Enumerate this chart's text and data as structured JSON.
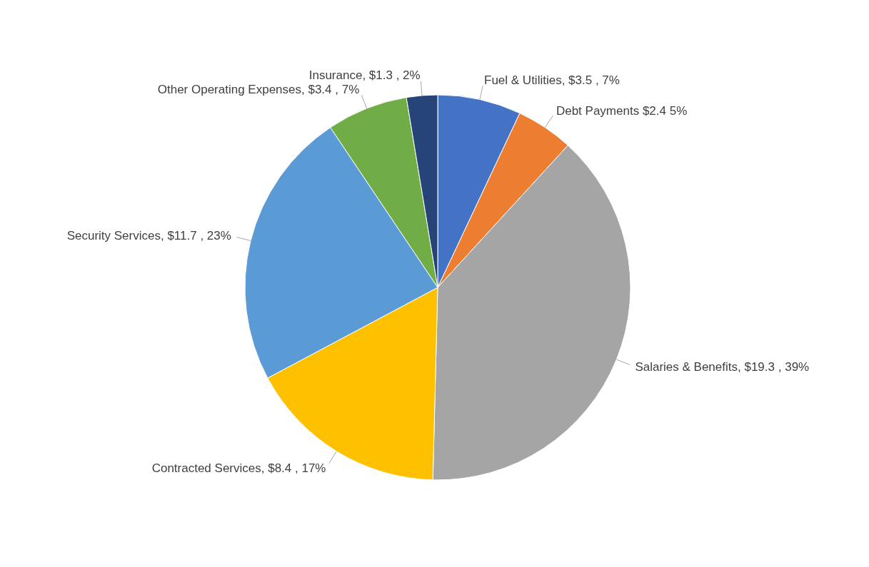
{
  "chart_data": {
    "type": "pie",
    "categories": [
      "Fuel & Utilities",
      "Debt Payments",
      "Salaries & Benefits",
      "Contracted Services",
      "Security Services",
      "Other Operating Expenses",
      "Insurance"
    ],
    "values": [
      3.5,
      2.4,
      19.3,
      8.4,
      11.7,
      3.4,
      1.3
    ],
    "value_labels": [
      ", $3.5 , 7%",
      " $2.4  5%",
      ", $19.3 , 39%",
      ", $8.4 , 17%",
      ", $11.7 , 23%",
      ", $3.4 , 7%",
      ", $1.3 , 2%"
    ],
    "colors": [
      "#4472c4",
      "#ed7d31",
      "#a5a5a5",
      "#ffc000",
      "#5b9bd5",
      "#70ad47",
      "#264478"
    ],
    "legend": false
  }
}
